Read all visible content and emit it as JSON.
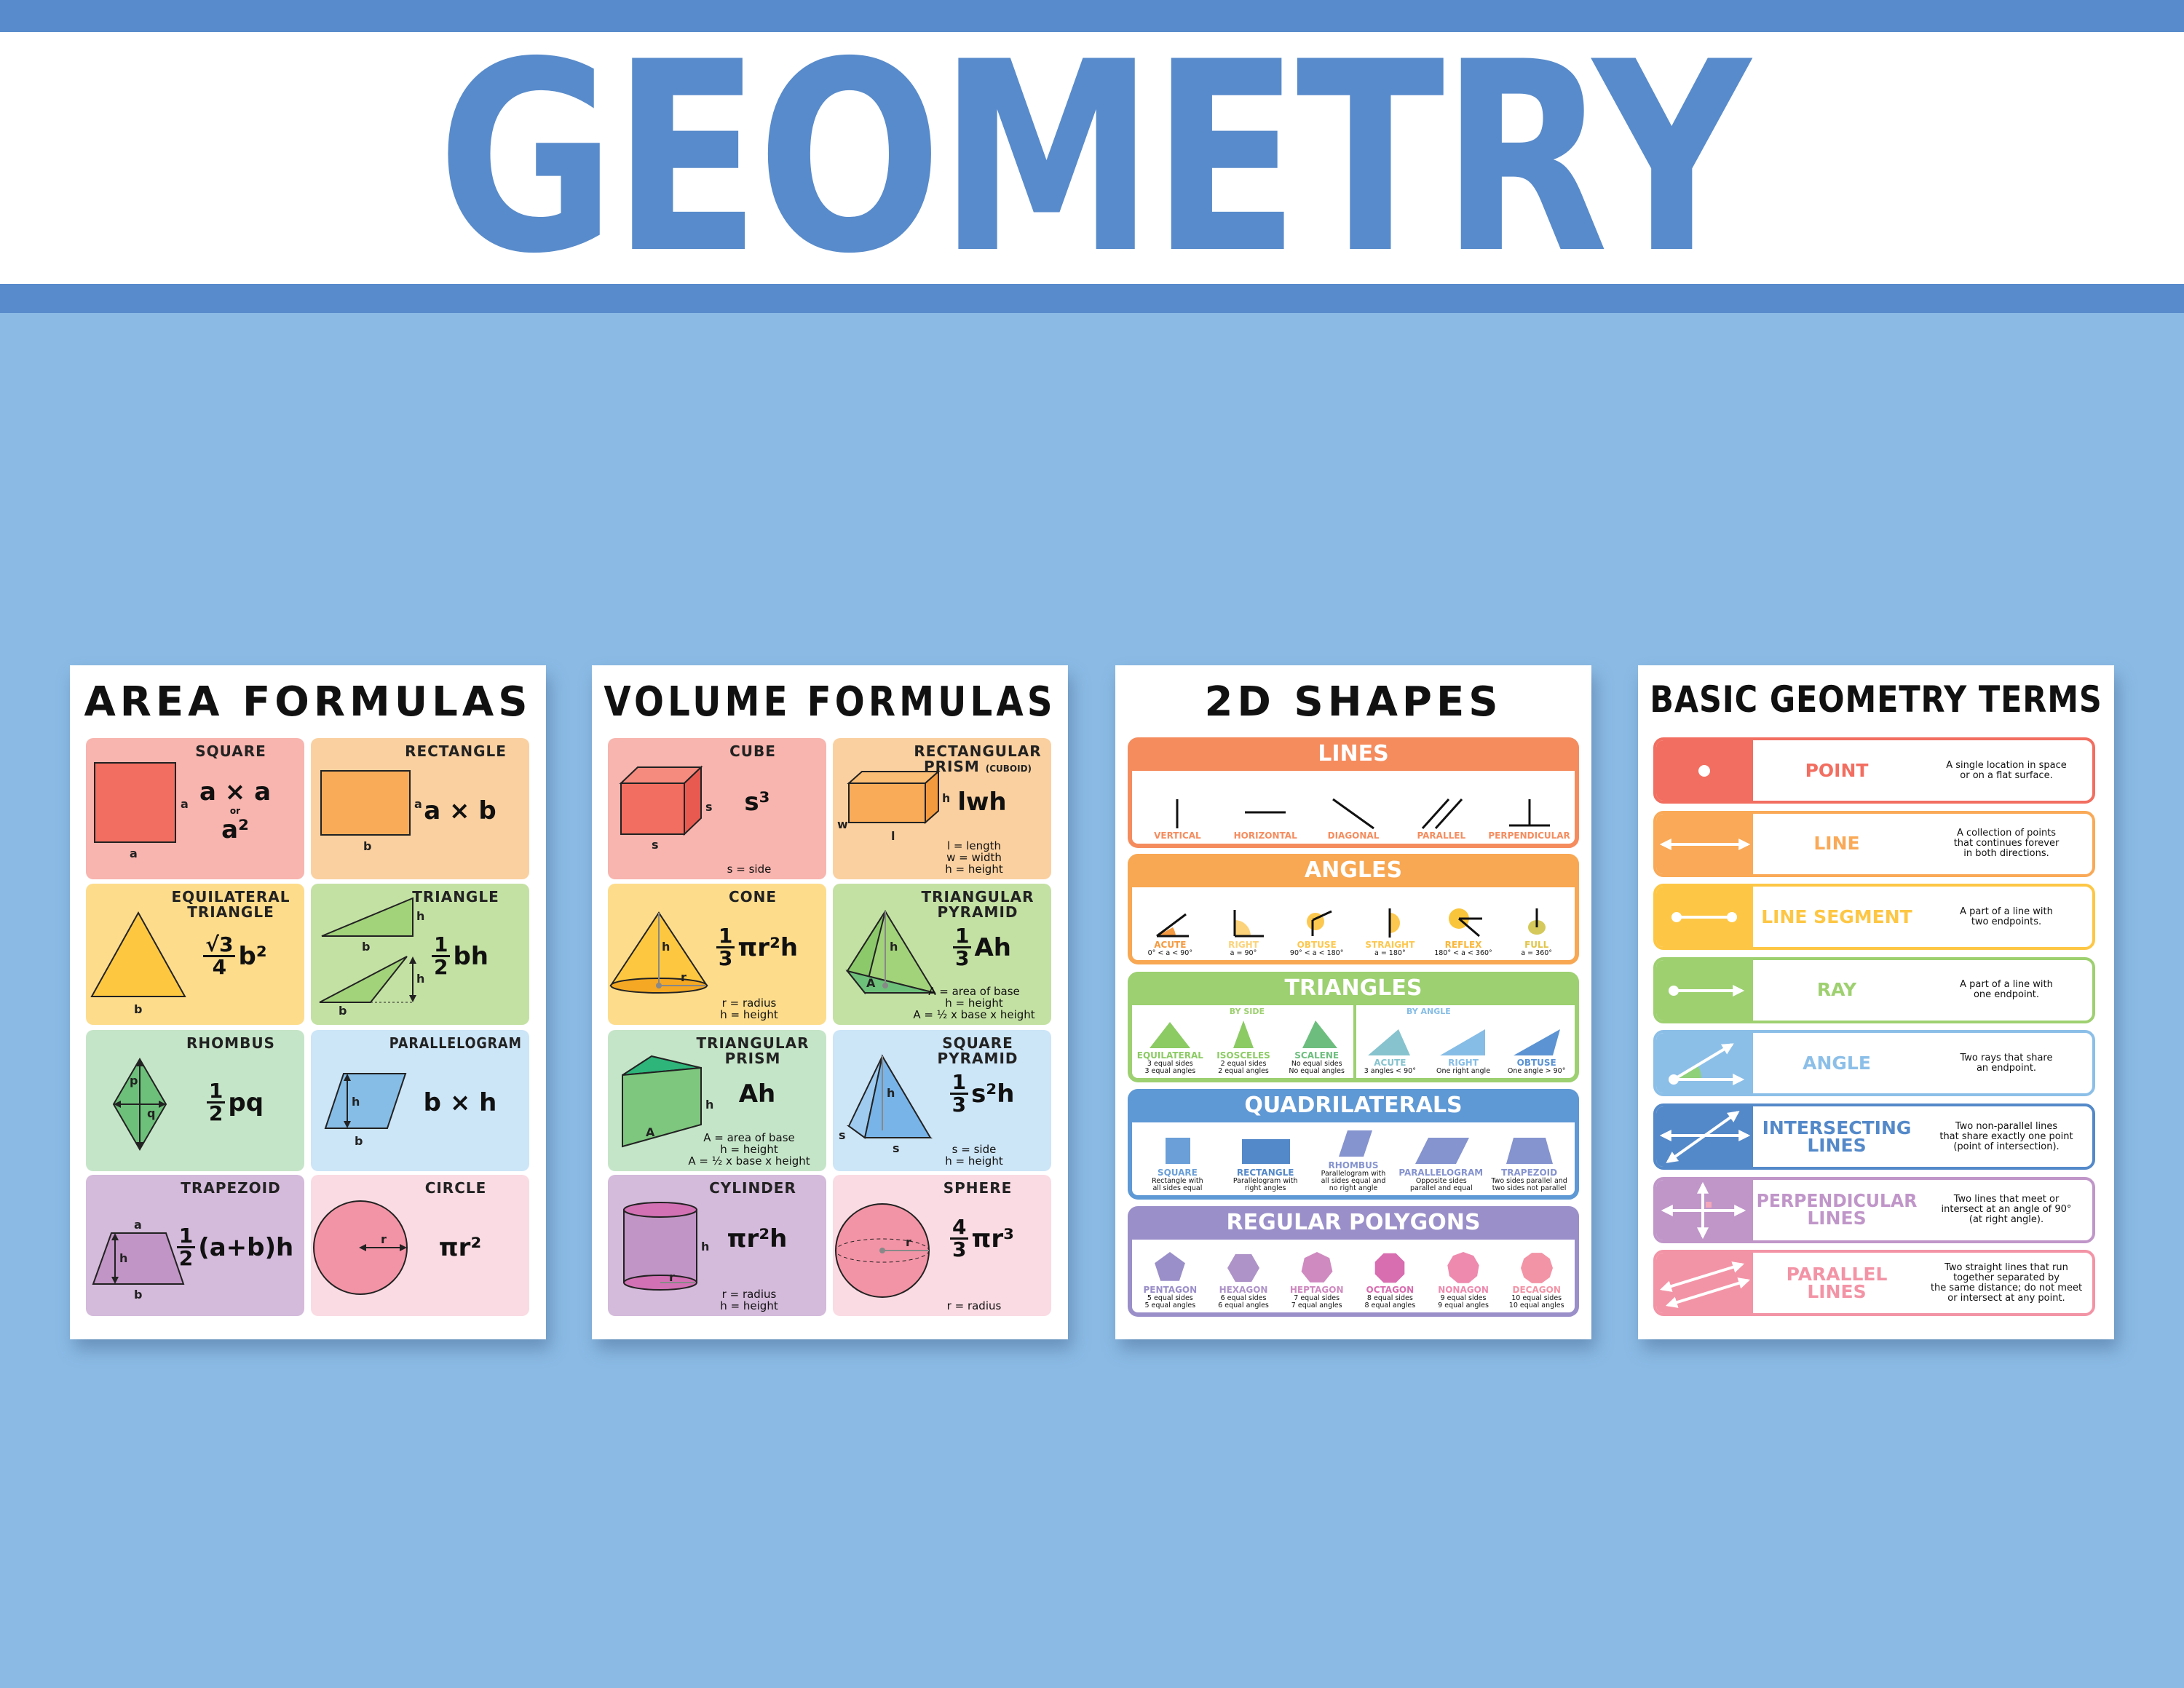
{
  "title": "GEOMETRY",
  "colors": {
    "brand_blue": "#588BCB",
    "background": "#8BBBE5"
  },
  "area_formulas": {
    "title": "AREA FORMULAS",
    "cells": [
      {
        "title": "SQUARE",
        "shape": "square",
        "color": "#F8B4AE",
        "labels": [
          "a",
          "a"
        ],
        "formula": {
          "lines": [
            "a × a",
            "or",
            "a²"
          ]
        }
      },
      {
        "title": "RECTANGLE",
        "shape": "rectangle",
        "color": "#FAD0A0",
        "labels": [
          "a",
          "b"
        ],
        "formula": {
          "rest": "a × b"
        }
      },
      {
        "title": "EQUILATERAL TRIANGLE",
        "shape": "equilateral",
        "color": "#FDDC8C",
        "labels": [
          "b"
        ],
        "formula": {
          "num": "√3",
          "den": "4",
          "rest": "b²"
        }
      },
      {
        "title": "TRIANGLE",
        "shape": "triangle",
        "color": "#C4E1A4",
        "labels": [
          "h",
          "b",
          "h",
          "b"
        ],
        "formula": {
          "num": "1",
          "den": "2",
          "rest": "bh"
        }
      },
      {
        "title": "RHOMBUS",
        "shape": "rhombus",
        "color": "#C5E5C8",
        "labels": [
          "p",
          "q"
        ],
        "formula": {
          "num": "1",
          "den": "2",
          "rest": "pq"
        }
      },
      {
        "title": "PARALLELOGRAM",
        "shape": "parallelogram",
        "color": "#CCE5F7",
        "labels": [
          "h",
          "b"
        ],
        "formula": {
          "rest": "b × h"
        }
      },
      {
        "title": "TRAPEZOID",
        "shape": "trapezoid",
        "color": "#D4BADB",
        "labels": [
          "a",
          "h",
          "b"
        ],
        "formula": {
          "num": "1",
          "den": "2",
          "rest": "(a+b)h"
        }
      },
      {
        "title": "CIRCLE",
        "shape": "circle",
        "color": "#FADBE3",
        "labels": [
          "r"
        ],
        "formula": {
          "rest": "πr²"
        }
      }
    ]
  },
  "volume_formulas": {
    "title": "VOLUME FORMULAS",
    "cells": [
      {
        "title": "CUBE",
        "shape": "cube",
        "color": "#F8B4AE",
        "labels": [
          "s",
          "s"
        ],
        "formula": {
          "rest": "s³"
        },
        "notes": [
          "s = side"
        ]
      },
      {
        "title": "RECTANGULAR PRISM",
        "title_small": "(CUBOID)",
        "shape": "cuboid",
        "color": "#FAD0A0",
        "labels": [
          "h",
          "w",
          "l"
        ],
        "formula": {
          "rest": "lwh"
        },
        "notes": [
          "l = length",
          "w = width",
          "h = height"
        ]
      },
      {
        "title": "CONE",
        "shape": "cone",
        "color": "#FDDC8C",
        "labels": [
          "h",
          "r"
        ],
        "formula": {
          "num": "1",
          "den": "3",
          "rest": "πr²h"
        },
        "notes": [
          "r = radius",
          "h = height"
        ]
      },
      {
        "title": "TRIANGULAR PYRAMID",
        "shape": "tri-pyramid",
        "color": "#C4E1A4",
        "labels": [
          "h",
          "A"
        ],
        "formula": {
          "num": "1",
          "den": "3",
          "rest": "Ah"
        },
        "notes": [
          "A = area of base",
          "h = height",
          "A = ½ x base x height"
        ]
      },
      {
        "title": "TRIANGULAR PRISM",
        "shape": "tri-prism",
        "color": "#C5E5C8",
        "labels": [
          "h",
          "A"
        ],
        "formula": {
          "rest": "Ah"
        },
        "notes": [
          "A = area of base",
          "h = height",
          "A = ½ x base x height"
        ]
      },
      {
        "title": "SQUARE PYRAMID",
        "shape": "sq-pyramid",
        "color": "#CCE5F7",
        "labels": [
          "h",
          "s",
          "s"
        ],
        "formula": {
          "num": "1",
          "den": "3",
          "rest": "s²h"
        },
        "notes": [
          "s = side",
          "h = height"
        ]
      },
      {
        "title": "CYLINDER",
        "shape": "cylinder",
        "color": "#D4BADB",
        "labels": [
          "h",
          "r"
        ],
        "formula": {
          "rest": "πr²h"
        },
        "notes": [
          "r = radius",
          "h = height"
        ]
      },
      {
        "title": "SPHERE",
        "shape": "sphere",
        "color": "#FADBE3",
        "labels": [
          "r"
        ],
        "formula": {
          "num": "4",
          "den": "3",
          "rest": "πr³"
        },
        "notes": [
          "r = radius"
        ]
      }
    ]
  },
  "shapes_2d": {
    "title": "2D SHAPES",
    "sections": [
      {
        "title": "LINES",
        "color": "#F58C5E",
        "items": [
          {
            "label": "VERTICAL",
            "icon": "vertical",
            "color": "#F58C5E"
          },
          {
            "label": "HORIZONTAL",
            "icon": "horizontal",
            "color": "#F58C5E"
          },
          {
            "label": "DIAGONAL",
            "icon": "diagonal",
            "color": "#F58C5E"
          },
          {
            "label": "PARALLEL",
            "icon": "parallel",
            "color": "#F58C5E"
          },
          {
            "label": "PERPENDICULAR",
            "icon": "perpendicular",
            "color": "#F58C5E"
          }
        ]
      },
      {
        "title": "ANGLES",
        "color": "#F8A752",
        "items": [
          {
            "label": "ACUTE",
            "desc": [
              "0° < a < 90°"
            ],
            "icon": "acute",
            "color": "#F59A40"
          },
          {
            "label": "RIGHT",
            "desc": [
              "a = 90°"
            ],
            "icon": "right",
            "color": "#FCD37A"
          },
          {
            "label": "OBTUSE",
            "desc": [
              "90° < a < 180°"
            ],
            "icon": "obtuse",
            "color": "#FDC84F"
          },
          {
            "label": "STRAIGHT",
            "desc": [
              "a = 180°"
            ],
            "icon": "straight",
            "color": "#FDC84F"
          },
          {
            "label": "REFLEX",
            "desc": [
              "180° < a < 360°"
            ],
            "icon": "reflex",
            "color": "#F9B73A"
          },
          {
            "label": "FULL",
            "desc": [
              "a = 360°"
            ],
            "icon": "full",
            "color": "#E0C54A"
          }
        ]
      },
      {
        "title": "TRIANGLES",
        "color": "#9DD070",
        "subtitles": [
          "BY SIDE",
          "BY ANGLE"
        ],
        "items": [
          {
            "label": "EQUILATERAL",
            "desc": [
              "3 equal sides",
              "3 equal angles"
            ],
            "icon": "tri-equilateral",
            "color": "#8CCB64"
          },
          {
            "label": "ISOSCELES",
            "desc": [
              "2 equal sides",
              "2 equal angles"
            ],
            "icon": "tri-isosceles",
            "color": "#8CCB64"
          },
          {
            "label": "SCALENE",
            "desc": [
              "No equal sides",
              "No equal angles"
            ],
            "icon": "tri-scalene",
            "color": "#6DBE7E"
          },
          {
            "label": "ACUTE",
            "desc": [
              "3 angles < 90°"
            ],
            "icon": "tri-acute",
            "color": "#86C3CE"
          },
          {
            "label": "RIGHT",
            "desc": [
              "One right angle"
            ],
            "icon": "tri-right",
            "color": "#86BDE6"
          },
          {
            "label": "OBTUSE",
            "desc": [
              "One angle > 90°"
            ],
            "icon": "tri-obtuse",
            "color": "#5B93D3"
          }
        ]
      },
      {
        "title": "QUADRILATERALS",
        "color": "#5E98D5",
        "items": [
          {
            "label": "SQUARE",
            "desc": [
              "Rectangle with",
              "all sides equal"
            ],
            "icon": "quad-square",
            "color": "#6A9FD8"
          },
          {
            "label": "RECTANGLE",
            "desc": [
              "Parallelogram with",
              "right angles"
            ],
            "icon": "quad-rectangle",
            "color": "#5489C9"
          },
          {
            "label": "RHOMBUS",
            "desc": [
              "Parallelogram with",
              "all sides equal and",
              "no right angle"
            ],
            "icon": "quad-rhombus",
            "color": "#8593CF"
          },
          {
            "label": "PARALLELOGRAM",
            "desc": [
              "Opposite sides",
              "parallel and equal"
            ],
            "icon": "quad-parallelogram",
            "color": "#8593CF"
          },
          {
            "label": "TRAPEZOID",
            "desc": [
              "Two sides parallel and",
              "two sides not parallel"
            ],
            "icon": "quad-trapezoid",
            "color": "#8593CF"
          }
        ]
      },
      {
        "title": "REGULAR POLYGONS",
        "color": "#9B8FC9",
        "items": [
          {
            "label": "PENTAGON",
            "desc": [
              "5 equal sides",
              "5 equal angles"
            ],
            "icon": "pentagon",
            "sides": 5,
            "color": "#9B8FC9"
          },
          {
            "label": "HEXAGON",
            "desc": [
              "6 equal sides",
              "6 equal angles"
            ],
            "icon": "hexagon",
            "sides": 6,
            "color": "#AE93C8"
          },
          {
            "label": "HEPTAGON",
            "desc": [
              "7 equal sides",
              "7 equal angles"
            ],
            "icon": "heptagon",
            "sides": 7,
            "color": "#CF8AC0"
          },
          {
            "label": "OCTAGON",
            "desc": [
              "8 equal sides",
              "8 equal angles"
            ],
            "icon": "octagon",
            "sides": 8,
            "color": "#D86DB0"
          },
          {
            "label": "NONAGON",
            "desc": [
              "9 equal sides",
              "9 equal angles"
            ],
            "icon": "nonagon",
            "sides": 9,
            "color": "#EE8AAE"
          },
          {
            "label": "DECAGON",
            "desc": [
              "10 equal sides",
              "10 equal angles"
            ],
            "icon": "decagon",
            "sides": 10,
            "color": "#F394A6"
          }
        ]
      }
    ]
  },
  "geometry_terms": {
    "title": "BASIC GEOMETRY TERMS",
    "rows": [
      {
        "term": [
          "POINT"
        ],
        "desc": [
          "A single location in space",
          "or on a flat surface."
        ],
        "icon": "point",
        "color": "#F26E60"
      },
      {
        "term": [
          "LINE"
        ],
        "desc": [
          "A collection of points",
          "that continues forever",
          "in both directions."
        ],
        "icon": "line",
        "color": "#F9A957"
      },
      {
        "term": [
          "LINE SEGMENT"
        ],
        "desc": [
          "A part of a line with",
          "two endpoints."
        ],
        "icon": "line-segment",
        "color": "#FDC745"
      },
      {
        "term": [
          "RAY"
        ],
        "desc": [
          "A part of a line with",
          "one endpoint."
        ],
        "icon": "ray",
        "color": "#9ED070"
      },
      {
        "term": [
          "ANGLE"
        ],
        "desc": [
          "Two rays that share",
          "an endpoint."
        ],
        "icon": "angle",
        "color": "#8CBFE8"
      },
      {
        "term": [
          "INTERSECTING",
          "LINES"
        ],
        "desc": [
          "Two non-parallel lines",
          "that share exactly one point",
          "(point of intersection)."
        ],
        "icon": "intersecting-lines",
        "color": "#5489C9"
      },
      {
        "term": [
          "PERPENDICULAR",
          "LINES"
        ],
        "desc": [
          "Two lines that meet or",
          "intersect at an angle of 90°",
          "(at right angle)."
        ],
        "icon": "perpendicular-lines",
        "color": "#C096C9"
      },
      {
        "term": [
          "PARALLEL",
          "LINES"
        ],
        "desc": [
          "Two straight lines that run",
          "together separated by",
          "the same distance; do not meet",
          "or intersect at any point."
        ],
        "icon": "parallel-lines",
        "color": "#F394A6"
      }
    ]
  }
}
